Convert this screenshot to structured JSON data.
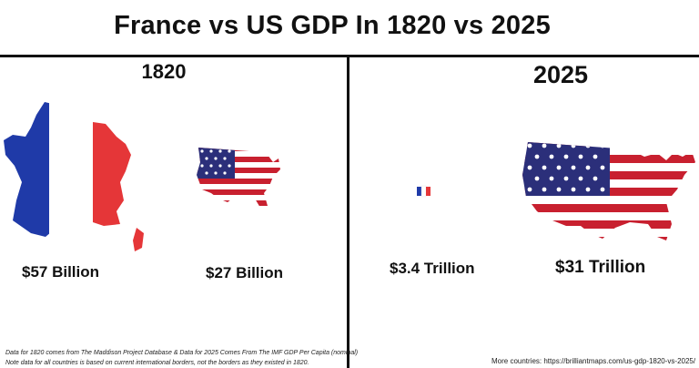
{
  "header": {
    "title": "France vs US GDP In 1820 vs 2025"
  },
  "panels": [
    {
      "year": "1820",
      "france_gdp": "$57 Billion",
      "us_gdp": "$27 Billion"
    },
    {
      "year": "2025",
      "france_gdp": "$3.4 Trillion",
      "us_gdp": "$31 Trillion"
    }
  ],
  "footer": {
    "source_note": "Data for 1820 comes from The Maddison Project Database & Data for 2025 Comes From The IMF GDP Per Capita (nominal)",
    "borders_note": "Note data for all countries is based on current international borders, not the borders as they existed in 1820.",
    "more": "More countries: https://brilliantmaps.com/us-gdp-1820-vs-2025/"
  },
  "colors": {
    "france_blue": "#1f3aa8",
    "france_red": "#e53638",
    "us_red": "#c8202f",
    "us_blue": "#2b2f7a"
  }
}
